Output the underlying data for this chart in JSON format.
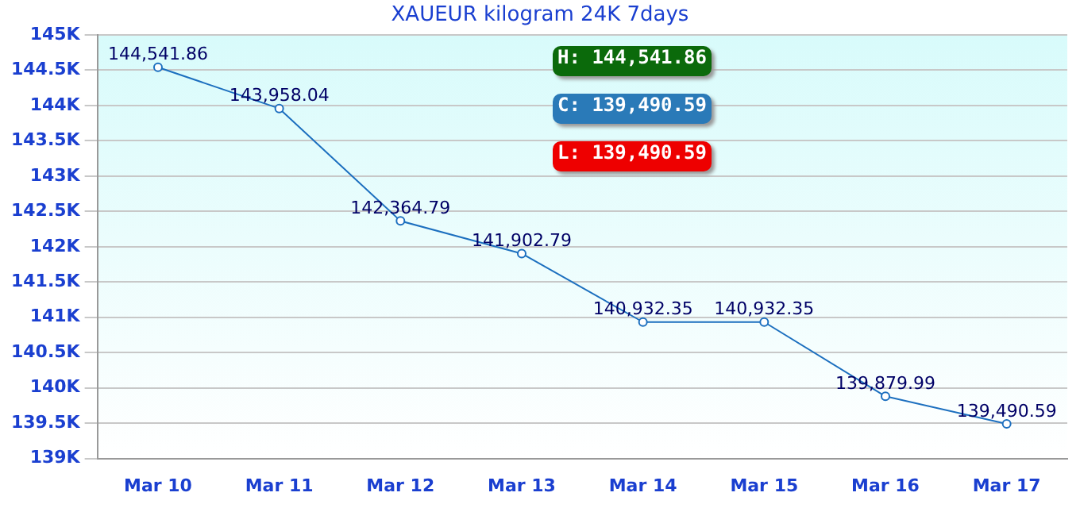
{
  "chart_data": {
    "type": "line",
    "title": "XAUEUR kilogram 24K 7days",
    "categories": [
      "Mar 10",
      "Mar 11",
      "Mar 12",
      "Mar 13",
      "Mar 14",
      "Mar 15",
      "Mar 16",
      "Mar 17"
    ],
    "series": [
      {
        "color": "#1c6fbf",
        "values": [
          144541.86,
          143958.04,
          142364.79,
          141902.79,
          140932.35,
          140932.35,
          139879.99,
          139490.59
        ],
        "value_labels": [
          "144,541.86",
          "143,958.04",
          "142,364.79",
          "141,902.79",
          "140,932.35",
          "140,932.35",
          "139,879.99",
          "139,490.59"
        ]
      }
    ],
    "ylim": [
      139000,
      145000
    ],
    "yticks": [
      {
        "value": 139000,
        "label": "139K"
      },
      {
        "value": 139500,
        "label": "139.5K"
      },
      {
        "value": 140000,
        "label": "140K"
      },
      {
        "value": 140500,
        "label": "140.5K"
      },
      {
        "value": 141000,
        "label": "141K"
      },
      {
        "value": 141500,
        "label": "141.5K"
      },
      {
        "value": 142000,
        "label": "142K"
      },
      {
        "value": 142500,
        "label": "142.5K"
      },
      {
        "value": 143000,
        "label": "143K"
      },
      {
        "value": 143500,
        "label": "143.5K"
      },
      {
        "value": 144000,
        "label": "144K"
      },
      {
        "value": 144500,
        "label": "144.5K"
      },
      {
        "value": 145000,
        "label": "145K"
      }
    ],
    "grid": "y",
    "legend": false,
    "marker": "circle",
    "line_style": "solid",
    "annotations": [
      "H: 144,541.86",
      "C: 139,490.59",
      "L: 139,490.59"
    ]
  }
}
